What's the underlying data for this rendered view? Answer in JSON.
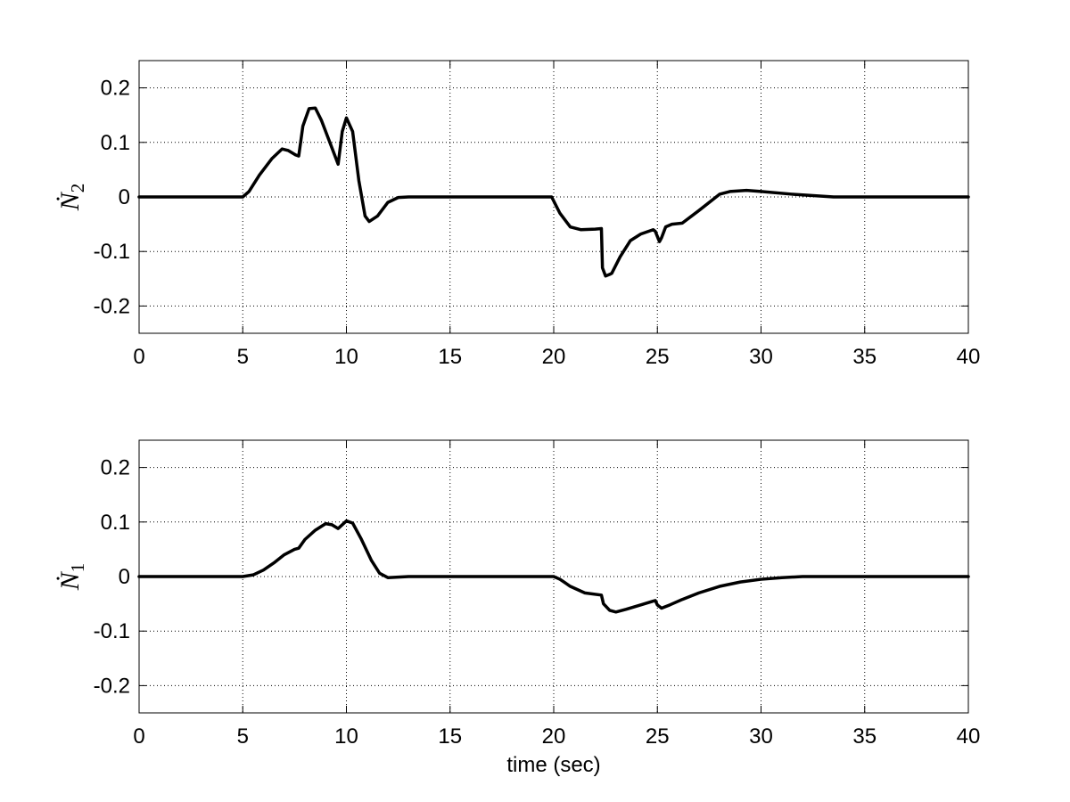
{
  "chart_data": [
    {
      "type": "line",
      "title": "",
      "xlabel": "",
      "ylabel": "Ṅ",
      "ylabel_subscript": "2",
      "xlim": [
        0,
        40
      ],
      "ylim": [
        -0.25,
        0.25
      ],
      "xticks": [
        0,
        5,
        10,
        15,
        20,
        25,
        30,
        35,
        40
      ],
      "yticks": [
        -0.2,
        -0.1,
        0,
        0.1,
        0.2
      ],
      "xtick_labels": [
        "0",
        "5",
        "10",
        "15",
        "20",
        "25",
        "30",
        "35",
        "40"
      ],
      "ytick_labels": [
        "-0.2",
        "-0.1",
        "0",
        "0.1",
        "0.2"
      ],
      "grid": true,
      "series": [
        {
          "color": "#000000",
          "x": [
            0,
            5.0,
            5.3,
            5.8,
            6.4,
            6.9,
            7.2,
            7.55,
            7.7,
            7.9,
            8.2,
            8.5,
            8.8,
            9.2,
            9.6,
            9.8,
            10.0,
            10.3,
            10.6,
            10.9,
            11.1,
            11.5,
            12.0,
            12.5,
            13.0,
            19.9,
            20.3,
            20.8,
            21.3,
            22.0,
            22.3,
            22.35,
            22.5,
            22.7,
            22.8,
            23.2,
            23.7,
            24.2,
            24.8,
            24.9,
            25.1,
            25.2,
            25.4,
            25.7,
            26.2,
            27.0,
            28.0,
            28.5,
            29.3,
            30.0,
            31.5,
            33.5,
            35.0,
            40.0
          ],
          "y": [
            0,
            0.0,
            0.01,
            0.04,
            0.07,
            0.088,
            0.085,
            0.077,
            0.075,
            0.13,
            0.162,
            0.163,
            0.14,
            0.1,
            0.06,
            0.12,
            0.145,
            0.12,
            0.03,
            -0.035,
            -0.045,
            -0.035,
            -0.01,
            -0.001,
            0.0,
            0.0,
            -0.03,
            -0.055,
            -0.06,
            -0.059,
            -0.058,
            -0.13,
            -0.145,
            -0.142,
            -0.14,
            -0.11,
            -0.08,
            -0.068,
            -0.06,
            -0.063,
            -0.082,
            -0.075,
            -0.055,
            -0.05,
            -0.048,
            -0.025,
            0.005,
            0.01,
            0.012,
            0.01,
            0.005,
            0.0,
            0.0,
            0.0
          ]
        }
      ]
    },
    {
      "type": "line",
      "title": "",
      "xlabel": "time (sec)",
      "ylabel": "Ṅ",
      "ylabel_subscript": "1",
      "xlim": [
        0,
        40
      ],
      "ylim": [
        -0.25,
        0.25
      ],
      "xticks": [
        0,
        5,
        10,
        15,
        20,
        25,
        30,
        35,
        40
      ],
      "yticks": [
        -0.2,
        -0.1,
        0,
        0.1,
        0.2
      ],
      "xtick_labels": [
        "0",
        "5",
        "10",
        "15",
        "20",
        "25",
        "30",
        "35",
        "40"
      ],
      "ytick_labels": [
        "-0.2",
        "-0.1",
        "0",
        "0.1",
        "0.2"
      ],
      "grid": true,
      "series": [
        {
          "color": "#000000",
          "x": [
            0,
            5.0,
            5.5,
            6.0,
            6.5,
            7.0,
            7.5,
            7.7,
            8.0,
            8.5,
            9.0,
            9.3,
            9.6,
            10.0,
            10.3,
            10.7,
            11.2,
            11.6,
            12.0,
            12.5,
            13.0,
            20.0,
            20.3,
            20.8,
            21.5,
            22.3,
            22.4,
            22.7,
            23.0,
            23.5,
            24.2,
            24.8,
            24.9,
            25.0,
            25.2,
            25.6,
            26.2,
            27.0,
            28.0,
            29.0,
            30.0,
            31.0,
            32.0,
            33.0,
            40.0
          ],
          "y": [
            0,
            0.0,
            0.003,
            0.012,
            0.025,
            0.04,
            0.05,
            0.052,
            0.068,
            0.085,
            0.097,
            0.095,
            0.088,
            0.102,
            0.098,
            0.07,
            0.03,
            0.006,
            -0.002,
            -0.001,
            0.0,
            0.0,
            -0.005,
            -0.018,
            -0.03,
            -0.034,
            -0.05,
            -0.062,
            -0.065,
            -0.06,
            -0.052,
            -0.045,
            -0.044,
            -0.052,
            -0.058,
            -0.052,
            -0.042,
            -0.03,
            -0.018,
            -0.01,
            -0.005,
            -0.002,
            0.0,
            0.0,
            0.0
          ]
        }
      ]
    }
  ]
}
